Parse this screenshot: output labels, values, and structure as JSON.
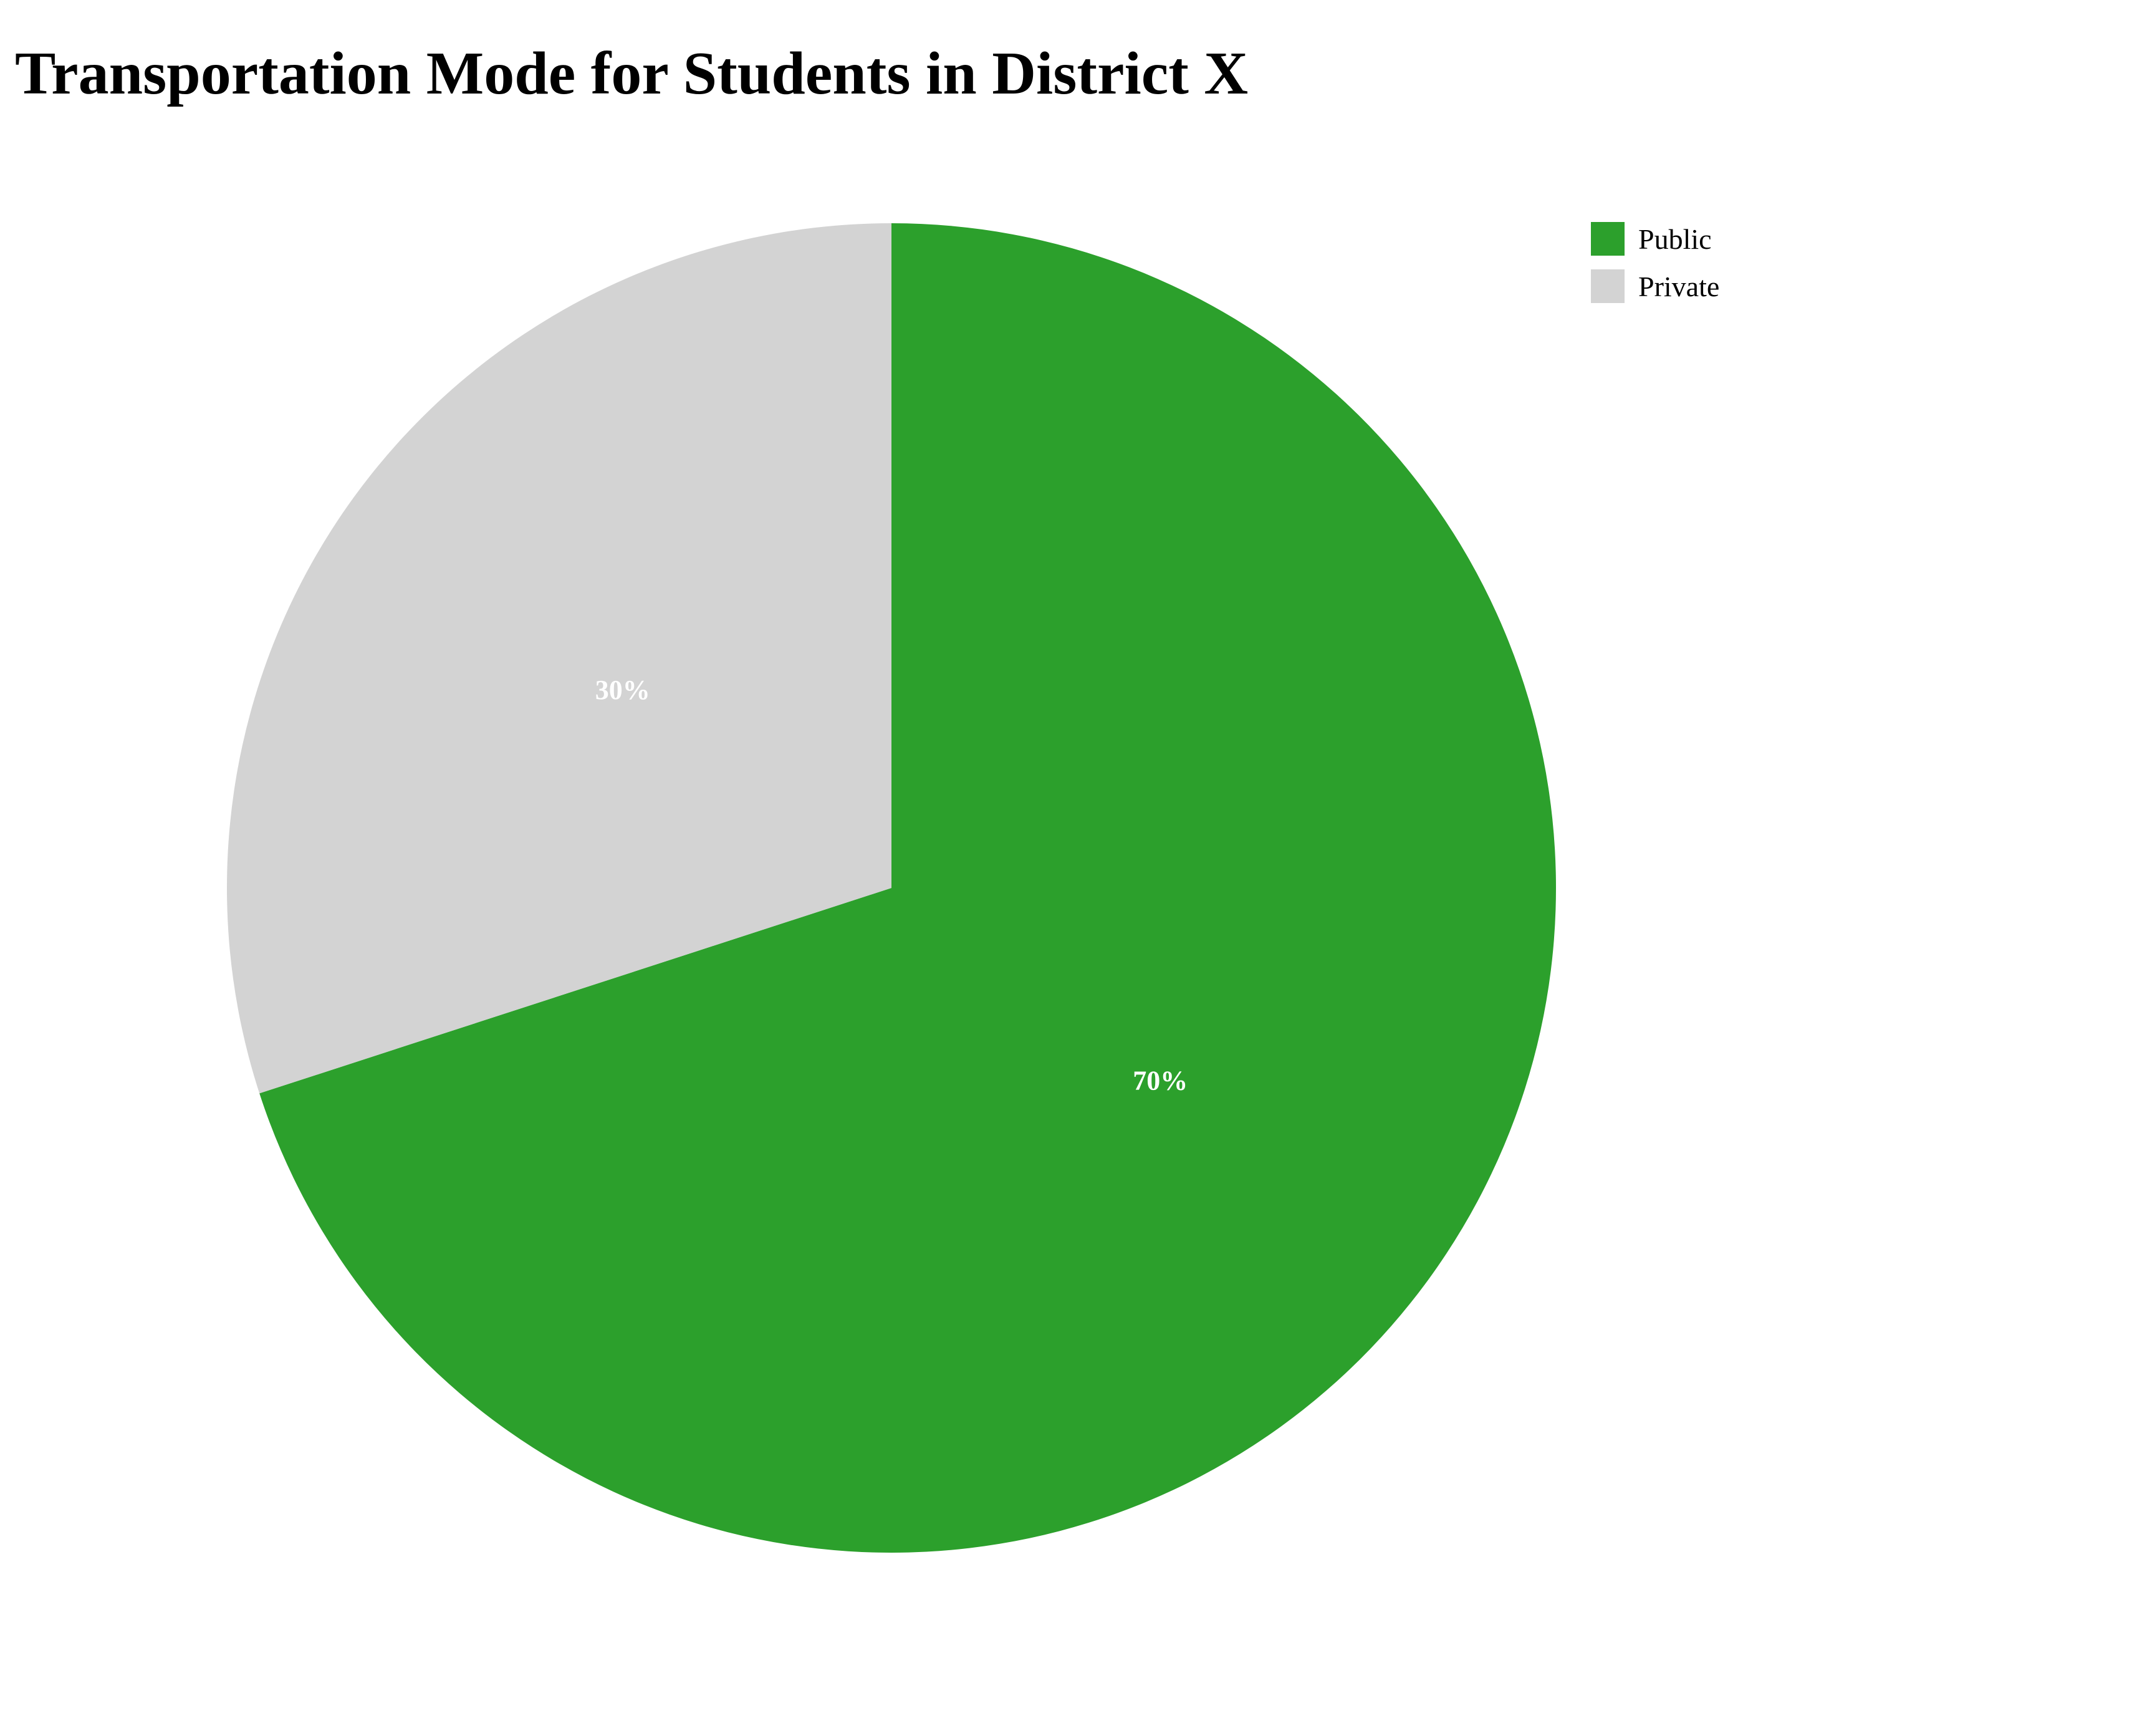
{
  "title": "Transportation Mode for Students in District X",
  "chart_data": {
    "type": "pie",
    "title": "Transportation Mode for Students in District X",
    "categories": [
      "Public",
      "Private"
    ],
    "values": [
      70,
      30
    ],
    "labels": [
      "70%",
      "30%"
    ],
    "colors": [
      "#2ca02c",
      "#d3d3d3"
    ],
    "start": "12 o'clock",
    "direction": "clockwise",
    "legend": {
      "position": "top-right",
      "entries": [
        "Public",
        "Private"
      ]
    }
  }
}
